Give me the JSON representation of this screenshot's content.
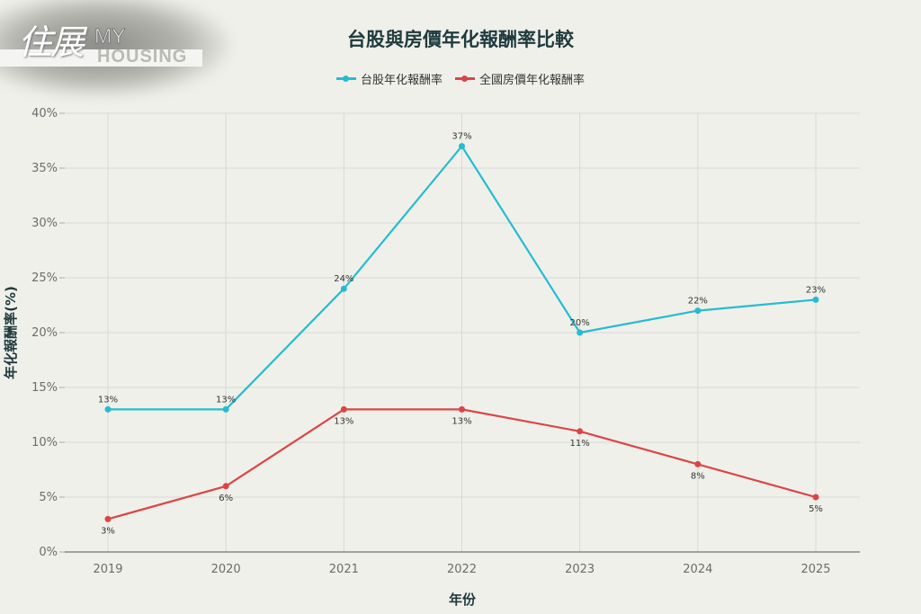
{
  "logo": {
    "chinese": "住展",
    "my": "MY",
    "housing": "HOUSING"
  },
  "chart_data": {
    "type": "line",
    "title": "台股與房價年化報酬率比較",
    "xlabel": "年份",
    "ylabel": "年化報酬率(%)",
    "categories": [
      "2019",
      "2020",
      "2021",
      "2022",
      "2023",
      "2024",
      "2025"
    ],
    "ylim": [
      0,
      40
    ],
    "yticks": [
      "0%",
      "5%",
      "10%",
      "15%",
      "20%",
      "25%",
      "30%",
      "35%",
      "40%"
    ],
    "grid": true,
    "legend_position": "top",
    "series": [
      {
        "name": "台股年化報酬率",
        "color": "#25bcd2",
        "values": [
          13,
          13,
          24,
          37,
          20,
          22,
          23
        ],
        "labels": [
          "13%",
          "13%",
          "24%",
          "37%",
          "20%",
          "22%",
          "23%"
        ],
        "label_position": "above"
      },
      {
        "name": "全國房價年化報酬率",
        "color": "#dc4545",
        "values": [
          3,
          6,
          13,
          13,
          11,
          8,
          5
        ],
        "labels": [
          "3%",
          "6%",
          "13%",
          "13%",
          "11%",
          "8%",
          "5%"
        ],
        "label_position": "below"
      }
    ]
  }
}
